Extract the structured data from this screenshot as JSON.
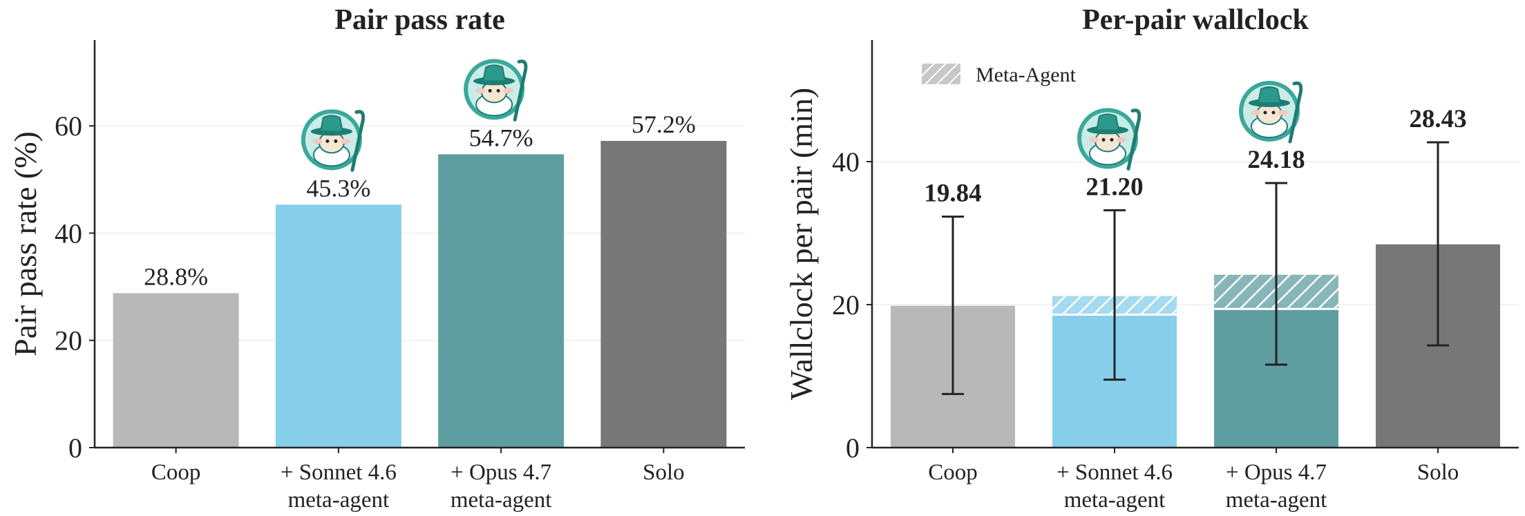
{
  "chart_data": [
    {
      "type": "bar",
      "title": "Pair pass rate",
      "xlabel": "",
      "ylabel": "Pair pass rate (%)",
      "ylim": [
        0,
        76
      ],
      "yticks": [
        "0",
        "20",
        "40",
        "60"
      ],
      "grid": "horizontal",
      "categories": [
        [
          "Coop"
        ],
        [
          "+ Sonnet 4.6",
          "meta-agent"
        ],
        [
          "+ Opus 4.7",
          "meta-agent"
        ],
        [
          "Solo"
        ]
      ],
      "values": [
        28.8,
        45.3,
        54.7,
        57.2
      ],
      "value_labels": [
        "28.8%",
        "45.3%",
        "54.7%",
        "57.2%"
      ],
      "colors": [
        "#b8b8b8",
        "#87ceeb",
        "#5f9ea0",
        "#777777"
      ],
      "mascot_icons": [
        false,
        true,
        true,
        false
      ]
    },
    {
      "type": "bar",
      "title": "Per-pair wallclock",
      "xlabel": "",
      "ylabel": "Wallclock per pair (min)",
      "ylim": [
        0,
        57
      ],
      "yticks": [
        "0",
        "20",
        "40"
      ],
      "grid": "horizontal",
      "categories": [
        [
          "Coop"
        ],
        [
          "+ Sonnet 4.6",
          "meta-agent"
        ],
        [
          "+ Opus 4.7",
          "meta-agent"
        ],
        [
          "Solo"
        ]
      ],
      "series": [
        {
          "name": "",
          "values": [
            19.84,
            18.6,
            19.4,
            28.43
          ]
        },
        {
          "name": "Meta-Agent",
          "values": [
            0,
            2.6,
            4.78,
            0
          ],
          "pattern": "hatch"
        }
      ],
      "totals": [
        19.84,
        21.2,
        24.18,
        28.43
      ],
      "value_labels": [
        "19.84",
        "21.20",
        "24.18",
        "28.43"
      ],
      "error_bars": [
        {
          "low": 7.5,
          "high": 32.3
        },
        {
          "low": 9.5,
          "high": 33.2
        },
        {
          "low": 11.6,
          "high": 37.0
        },
        {
          "low": 14.3,
          "high": 42.7
        }
      ],
      "legend": {
        "position": "top-left",
        "entries": [
          "Meta-Agent"
        ]
      },
      "colors": [
        "#b8b8b8",
        "#87ceeb",
        "#5f9ea0",
        "#777777"
      ],
      "mascot_icons": [
        false,
        true,
        true,
        false
      ]
    }
  ]
}
